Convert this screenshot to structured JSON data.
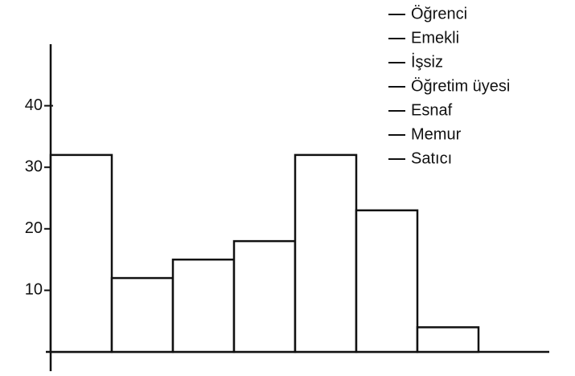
{
  "chart_data": {
    "type": "bar",
    "categories": [
      "Öğrenci",
      "Emekli",
      "İşsiz",
      "Öğretim üyesi",
      "Esnaf",
      "Memur",
      "Satıcı"
    ],
    "values": [
      32,
      12,
      15,
      18,
      32,
      23,
      4
    ],
    "color": "#ffffff",
    "ylim": [
      0,
      50
    ],
    "yticks": [
      10,
      20,
      30,
      40
    ],
    "grid": false
  }
}
